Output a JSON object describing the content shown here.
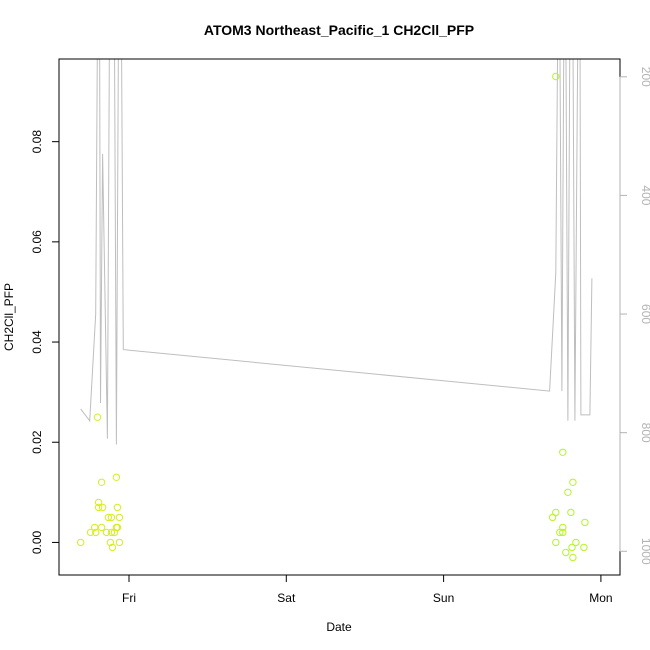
{
  "chart_data": {
    "type": "scatter",
    "title": "ATOM3 Northeast_Pacific_1 CH2Cll_PFP",
    "xlabel": "Date",
    "ylabel": "CH2Cll_PFP",
    "x_ticks": [
      "Fri",
      "Sat",
      "Sun",
      "Mon"
    ],
    "ylim": [
      -0.0065,
      0.0965
    ],
    "y_ticks": [
      0.0,
      0.02,
      0.04,
      0.06,
      0.08
    ],
    "y_tick_labels": [
      "0.00",
      "0.02",
      "0.04",
      "0.06",
      "0.08"
    ],
    "y2_ticks": [
      200,
      400,
      600,
      800,
      1000
    ],
    "y2lim": [
      1040,
      170
    ],
    "grid": false,
    "colors": {
      "points": "#b5f523",
      "points_early": "#d6ee20",
      "pressure_line": "#bebebe",
      "axes": "#000000",
      "right_axis": "#b3b3b3"
    },
    "series": [
      {
        "values_note": "",
        "points": [
          {
            "x": -0.307,
            "y": 0.0
          },
          {
            "x": -0.244,
            "y": 0.002
          },
          {
            "x": -0.218,
            "y": 0.003
          },
          {
            "x": -0.212,
            "y": 0.002
          },
          {
            "x": -0.2,
            "y": 0.025
          },
          {
            "x": -0.193,
            "y": 0.008
          },
          {
            "x": -0.193,
            "y": 0.007
          },
          {
            "x": -0.174,
            "y": 0.012
          },
          {
            "x": -0.174,
            "y": 0.003
          },
          {
            "x": -0.168,
            "y": 0.007
          },
          {
            "x": -0.143,
            "y": 0.002
          },
          {
            "x": -0.131,
            "y": 0.005
          },
          {
            "x": -0.118,
            "y": 0.0
          },
          {
            "x": -0.112,
            "y": 0.002
          },
          {
            "x": -0.112,
            "y": 0.005
          },
          {
            "x": -0.105,
            "y": -0.001
          },
          {
            "x": -0.093,
            "y": 0.002
          },
          {
            "x": -0.08,
            "y": 0.013
          },
          {
            "x": -0.08,
            "y": 0.003
          },
          {
            "x": -0.074,
            "y": 0.007
          },
          {
            "x": -0.074,
            "y": 0.003
          },
          {
            "x": -0.061,
            "y": 0.005
          },
          {
            "x": -0.061,
            "y": 0.0
          },
          {
            "x": 2.693,
            "y": 0.005
          },
          {
            "x": 2.713,
            "y": 0.006
          },
          {
            "x": 2.713,
            "y": 0.0
          },
          {
            "x": 2.713,
            "y": 0.093
          },
          {
            "x": 2.739,
            "y": 0.002
          },
          {
            "x": 2.758,
            "y": 0.002
          },
          {
            "x": 2.758,
            "y": 0.018
          },
          {
            "x": 2.758,
            "y": 0.003
          },
          {
            "x": 2.777,
            "y": -0.002
          },
          {
            "x": 2.79,
            "y": 0.01
          },
          {
            "x": 2.809,
            "y": 0.006
          },
          {
            "x": 2.816,
            "y": -0.001
          },
          {
            "x": 2.822,
            "y": 0.012
          },
          {
            "x": 2.822,
            "y": -0.003
          },
          {
            "x": 2.841,
            "y": 0.0
          },
          {
            "x": 2.892,
            "y": -0.001
          },
          {
            "x": 2.898,
            "y": 0.004
          }
        ]
      },
      {
        "name": "",
        "axis": "right",
        "points": [
          {
            "x": -0.307,
            "y": 760
          },
          {
            "x": -0.25,
            "y": 780
          },
          {
            "x": -0.212,
            "y": 600
          },
          {
            "x": -0.2,
            "y": 110
          },
          {
            "x": -0.187,
            "y": 110
          },
          {
            "x": -0.181,
            "y": 750
          },
          {
            "x": -0.168,
            "y": 330
          },
          {
            "x": -0.137,
            "y": 810
          },
          {
            "x": -0.124,
            "y": 110
          },
          {
            "x": -0.112,
            "y": 110
          },
          {
            "x": -0.093,
            "y": 110
          },
          {
            "x": -0.08,
            "y": 820
          },
          {
            "x": -0.067,
            "y": 110
          },
          {
            "x": -0.048,
            "y": 110
          },
          {
            "x": -0.036,
            "y": 660
          },
          {
            "x": 2.674,
            "y": 730
          },
          {
            "x": 2.713,
            "y": 530
          },
          {
            "x": 2.726,
            "y": 110
          },
          {
            "x": 2.739,
            "y": 110
          },
          {
            "x": 2.752,
            "y": 730
          },
          {
            "x": 2.765,
            "y": 110
          },
          {
            "x": 2.777,
            "y": 110
          },
          {
            "x": 2.79,
            "y": 780
          },
          {
            "x": 2.803,
            "y": 110
          },
          {
            "x": 2.822,
            "y": 110
          },
          {
            "x": 2.835,
            "y": 780
          },
          {
            "x": 2.854,
            "y": 110
          },
          {
            "x": 2.867,
            "y": 110
          },
          {
            "x": 2.873,
            "y": 770
          },
          {
            "x": 2.93,
            "y": 770
          },
          {
            "x": 2.943,
            "y": 540
          }
        ]
      }
    ]
  }
}
